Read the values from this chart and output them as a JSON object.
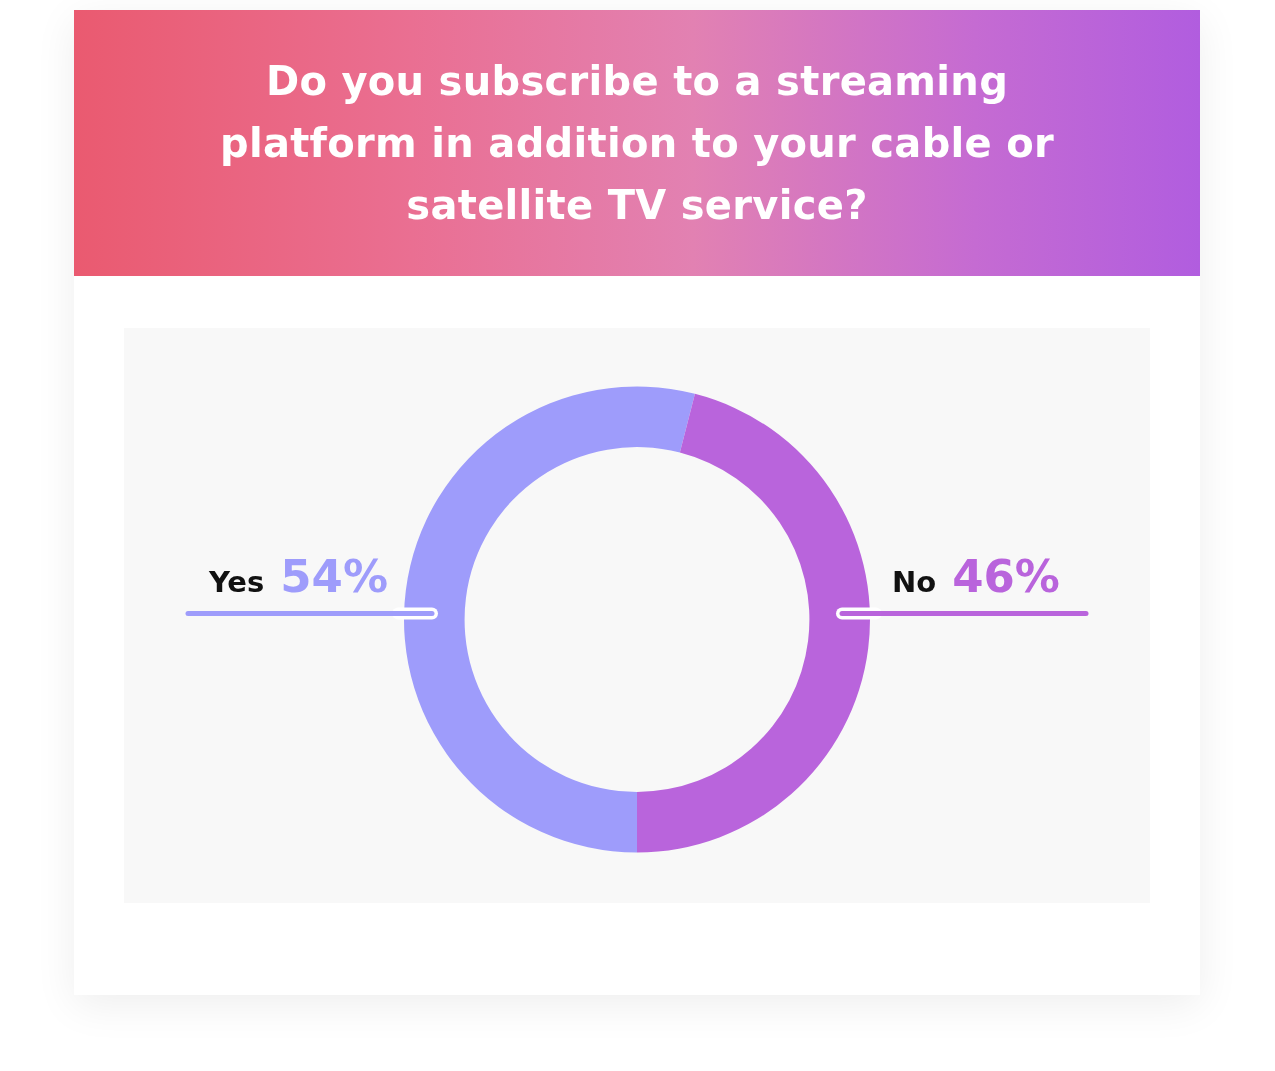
{
  "chart_data": {
    "type": "donut",
    "title": "Do you subscribe to a streaming platform in addition to your cable or satellite TV service?",
    "categories": [
      "Yes",
      "No"
    ],
    "values": [
      54,
      46
    ],
    "colors": [
      "#9e9cfb",
      "#b964dc"
    ],
    "value_labels": [
      "54%",
      "46%"
    ]
  }
}
